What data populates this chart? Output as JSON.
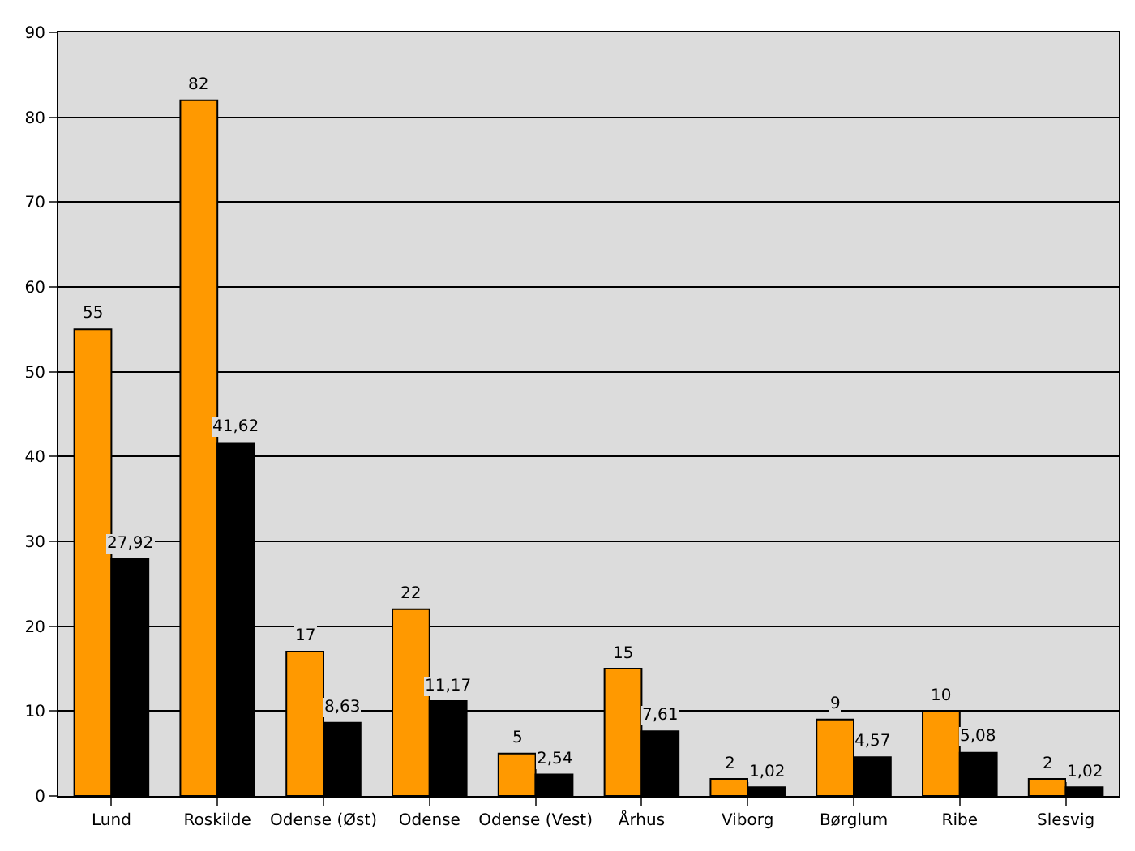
{
  "chart_data": {
    "type": "bar",
    "categories": [
      "Lund",
      "Roskilde",
      "Odense (Øst)",
      "Odense",
      "Odense (Vest)",
      "Århus",
      "Viborg",
      "Børglum",
      "Ribe",
      "Slesvig"
    ],
    "series": [
      {
        "color": "#ff9900",
        "values": [
          55,
          82,
          17,
          22,
          5,
          15,
          2,
          9,
          10,
          2
        ],
        "value_labels": [
          "55",
          "82",
          "17",
          "22",
          "5",
          "15",
          "2",
          "9",
          "10",
          "2"
        ]
      },
      {
        "color": "#000000",
        "values": [
          27.92,
          41.62,
          8.63,
          11.17,
          2.54,
          7.61,
          1.02,
          4.57,
          5.08,
          1.02
        ],
        "value_labels": [
          "27,92",
          "41,62",
          "8,63",
          "11,17",
          "2,54",
          "7,61",
          "1,02",
          "4,57",
          "5,08",
          "1,02"
        ]
      }
    ],
    "ylim": [
      0,
      90
    ],
    "yticks": [
      0,
      10,
      20,
      30,
      40,
      50,
      60,
      70,
      80,
      90
    ],
    "grid": "y"
  }
}
